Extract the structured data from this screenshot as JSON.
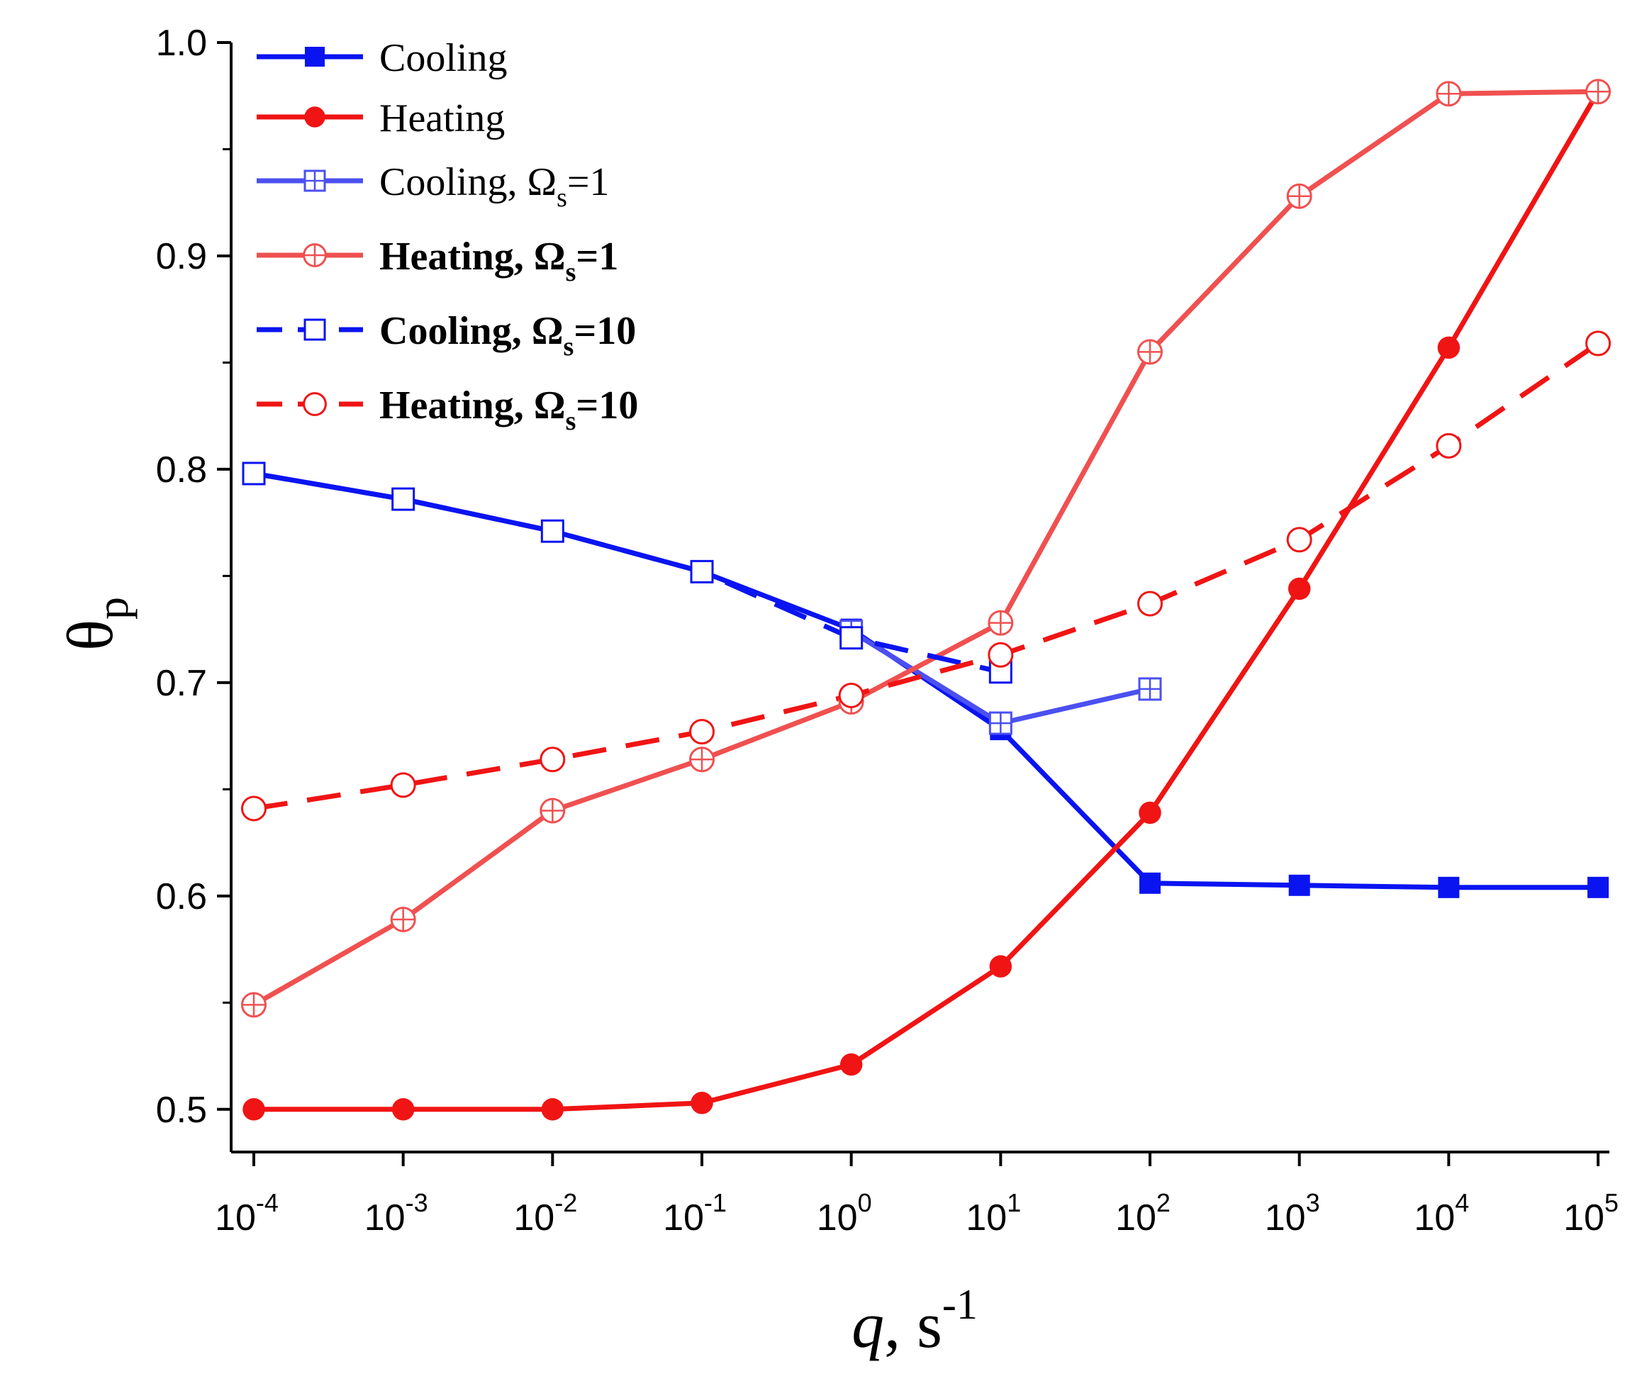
{
  "chart_data": {
    "type": "line",
    "x_scale": "log",
    "x": [
      0.0001,
      0.001,
      0.01,
      0.1,
      1,
      10,
      100,
      1000,
      10000,
      100000
    ],
    "x_tick_labels": [
      {
        "base": "10",
        "exp": "-4"
      },
      {
        "base": "10",
        "exp": "-3"
      },
      {
        "base": "10",
        "exp": "-2"
      },
      {
        "base": "10",
        "exp": "-1"
      },
      {
        "base": "10",
        "exp": "0"
      },
      {
        "base": "10",
        "exp": "1"
      },
      {
        "base": "10",
        "exp": "2"
      },
      {
        "base": "10",
        "exp": "3"
      },
      {
        "base": "10",
        "exp": "4"
      },
      {
        "base": "10",
        "exp": "5"
      }
    ],
    "y_ticks": [
      "0.5",
      "0.6",
      "0.7",
      "0.8",
      "0.9",
      "1.0"
    ],
    "ylim": [
      0.48,
      1.0
    ],
    "xlabel": {
      "var": "q",
      "sep": ",",
      "unit": "s",
      "exp": "-1"
    },
    "ylabel": {
      "main": "θ",
      "sub": "p"
    },
    "series": [
      {
        "name": "Cooling",
        "name_base": "Cooling",
        "name_suffix": "",
        "name_sub": "",
        "color": "#0a14f0",
        "marker": "filled-square",
        "dash": "solid",
        "bold": false,
        "x": [
          0.0001,
          0.001,
          0.01,
          0.1,
          1,
          10,
          100,
          1000,
          10000,
          100000
        ],
        "values": [
          0.798,
          0.786,
          0.771,
          0.752,
          0.725,
          0.678,
          0.606,
          0.605,
          0.604,
          0.604
        ]
      },
      {
        "name": "Heating",
        "name_base": "Heating",
        "name_suffix": "",
        "name_sub": "",
        "color": "#f01414",
        "marker": "filled-circle",
        "dash": "solid",
        "bold": false,
        "x": [
          0.0001,
          0.001,
          0.01,
          0.1,
          1,
          10,
          100,
          1000,
          10000,
          100000
        ],
        "values": [
          0.5,
          0.5,
          0.5,
          0.503,
          0.521,
          0.567,
          0.639,
          0.744,
          0.857,
          0.977
        ]
      },
      {
        "name": "Cooling, Ωs=1",
        "name_base": "Cooling, Ω",
        "name_sub": "s",
        "name_suffix": "=1",
        "color": "#4b50f0",
        "marker": "cross-square",
        "dash": "solid",
        "bold": false,
        "x": [
          1,
          10,
          100
        ],
        "values": [
          0.724,
          0.681,
          0.697
        ]
      },
      {
        "name": "Heating, Ωs=1",
        "name_base": "Heating, Ω",
        "name_sub": "s",
        "name_suffix": "=1",
        "color": "#f05050",
        "marker": "cross-circle",
        "dash": "solid",
        "bold": true,
        "x": [
          0.0001,
          0.001,
          0.01,
          0.1,
          1,
          10,
          100,
          1000,
          10000,
          100000
        ],
        "values": [
          0.549,
          0.589,
          0.64,
          0.664,
          0.691,
          0.728,
          0.855,
          0.928,
          0.976,
          0.977
        ]
      },
      {
        "name": "Cooling, Ωs=10",
        "name_base": "Cooling, Ω",
        "name_sub": "s",
        "name_suffix": "=10",
        "color": "#0a14f0",
        "marker": "open-square",
        "dash": "dashed",
        "bold": true,
        "x": [
          0.0001,
          0.001,
          0.01,
          0.1,
          1,
          10
        ],
        "values": [
          0.798,
          0.786,
          0.771,
          0.752,
          0.721,
          0.705
        ]
      },
      {
        "name": "Heating, Ωs=10",
        "name_base": "Heating, Ω",
        "name_sub": "s",
        "name_suffix": "=10",
        "color": "#f01414",
        "marker": "open-circle",
        "dash": "dashed",
        "bold": true,
        "x": [
          0.0001,
          0.001,
          0.01,
          0.1,
          1,
          10,
          100,
          1000,
          10000,
          100000
        ],
        "values": [
          0.641,
          0.652,
          0.664,
          0.677,
          0.694,
          0.713,
          0.737,
          0.767,
          0.811,
          0.859
        ]
      }
    ]
  }
}
